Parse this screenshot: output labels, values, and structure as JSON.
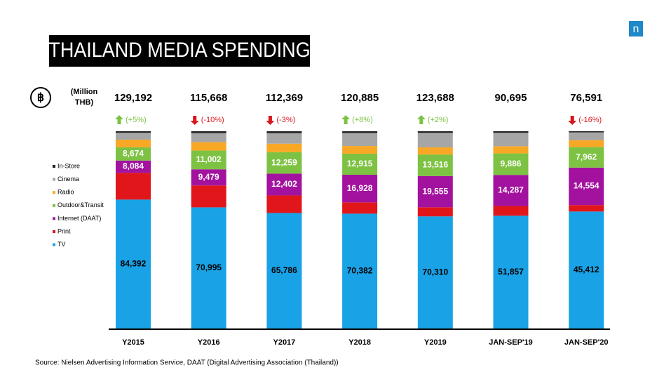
{
  "chart_data": {
    "type": "stacked_bar",
    "stacking": "percent",
    "title": "THAILAND MEDIA SPENDING",
    "logo": "n",
    "currency_symbol": "฿",
    "unit_label": [
      "(Million",
      "THB)"
    ],
    "source": "Source: Nielsen Advertising Information Service, DAAT (Digital Advertising Association (Thailand))",
    "categories": [
      "Y2015",
      "Y2016",
      "Y2017",
      "Y2018",
      "Y2019",
      "JAN-SEP'19",
      "JAN-SEP'20"
    ],
    "totals": [
      129192,
      115668,
      112369,
      120885,
      123688,
      90695,
      76591
    ],
    "total_labels": [
      "129,192",
      "115,668",
      "112,369",
      "120,885",
      "123,688",
      "90,695",
      "76,591"
    ],
    "changes": [
      "(+5%)",
      "(-10%)",
      "(-3%)",
      "(+8%)",
      "(+2%)",
      null,
      "(-16%)"
    ],
    "up_color": "#7dc242",
    "down_color": "#d9161c",
    "series": [
      {
        "name": "TV",
        "color": "#19a2e6",
        "label_color": "#000",
        "values": [
          84392,
          70995,
          65786,
          70382,
          70310,
          51857,
          45412
        ],
        "value_labels": [
          "84,392",
          "70,995",
          "65,786",
          "70,382",
          "70,310",
          "51,857",
          "45,412"
        ]
      },
      {
        "name": "Print",
        "color": "#e0161b",
        "label_color": "#fff",
        "values": [
          17500,
          12800,
          10000,
          6900,
          5700,
          4500,
          2500
        ]
      },
      {
        "name": "Internet (DAAT)",
        "color": "#a3129f",
        "label_color": "#fff",
        "values": [
          8084,
          9479,
          12402,
          16928,
          19555,
          14287,
          14554
        ],
        "value_labels": [
          "8,084",
          "9,479",
          "12,402",
          "16,928",
          "19,555",
          "14,287",
          "14,554"
        ]
      },
      {
        "name": "Outdoor&Transit",
        "color": "#7dc242",
        "label_color": "#fff",
        "values": [
          8674,
          11002,
          12259,
          12915,
          13516,
          9886,
          7962
        ],
        "value_labels": [
          "8,674",
          "11,002",
          "12,259",
          "12,915",
          "13,516",
          "9,886",
          "7,962"
        ]
      },
      {
        "name": "Radio",
        "color": "#f9a825",
        "label_color": "#000",
        "values": [
          5000,
          4900,
          4800,
          4700,
          4500,
          3300,
          2700
        ]
      },
      {
        "name": "Cinema",
        "color": "#a6a6a6",
        "label_color": "#000",
        "values": [
          4500,
          5300,
          6000,
          8000,
          9100,
          6200,
          3000
        ]
      },
      {
        "name": "In-Store",
        "color": "#222222",
        "label_color": "#fff",
        "values": [
          1000,
          1100,
          1100,
          1060,
          1000,
          700,
          450
        ]
      }
    ]
  }
}
